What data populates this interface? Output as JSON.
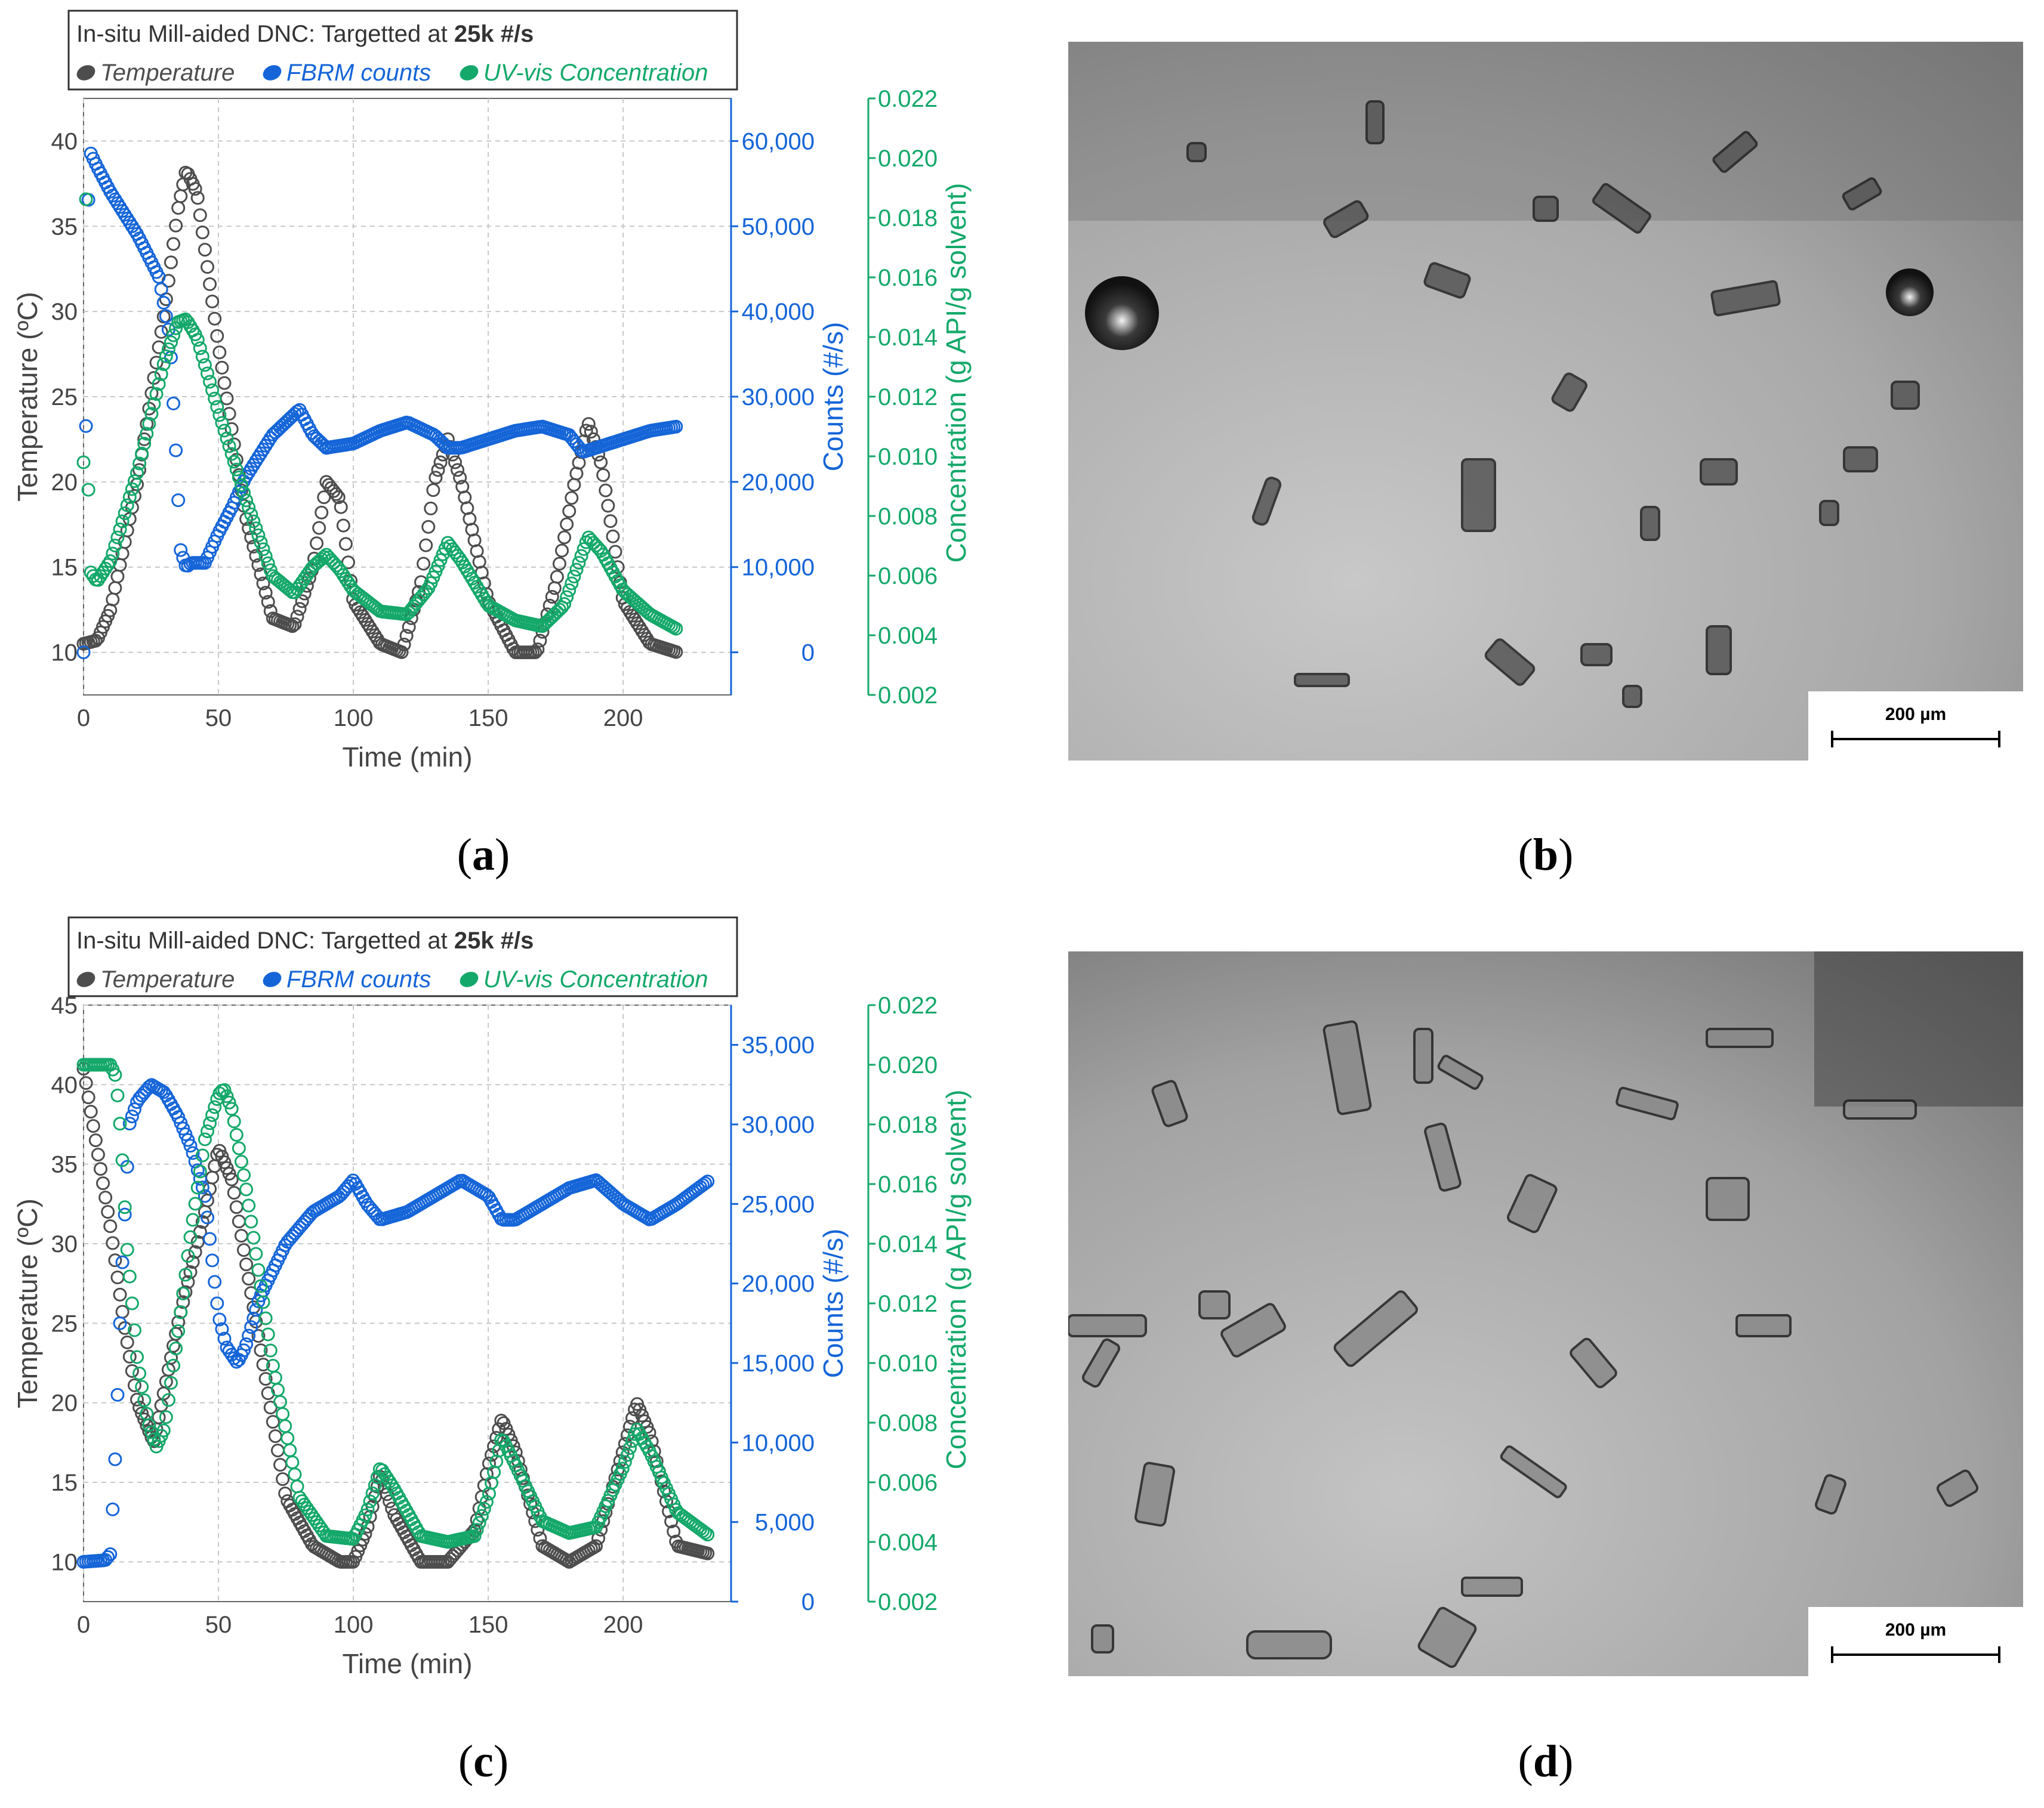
{
  "captions": {
    "a": "a",
    "b": "b",
    "c": "c",
    "d": "d"
  },
  "colors": {
    "temperature": "#4d4d4d",
    "fbrm": "#1565d8",
    "uvvis": "#14a86a"
  },
  "scalebar": {
    "label": "200 µm"
  },
  "chart_data": [
    {
      "type": "line",
      "panel": "a",
      "legend_title": {
        "prefix": "In-situ Mill-aided DNC: Targetted at ",
        "bold": "25k #/s"
      },
      "legend": [
        "Temperature",
        "FBRM counts",
        "UV-vis Concentration"
      ],
      "legend_placement": "top",
      "xlabel": "Time (min)",
      "ylabel_left": "Temperature (ºC)",
      "ylabel_right1": "Counts (#/s)",
      "ylabel_right2": "Concentration (g API/g solvent)",
      "xlim": [
        0,
        240
      ],
      "ylim_left": [
        7.5,
        42.5
      ],
      "ylim_right1": [
        -5000,
        65000
      ],
      "ylim_right2": [
        0.002,
        0.022
      ],
      "x_ticks": [
        "0",
        "50",
        "100",
        "150",
        "200"
      ],
      "y_ticks_left": [
        "10",
        "15",
        "20",
        "25",
        "30",
        "35",
        "40"
      ],
      "y_ticks_right1": [
        "0",
        "10,000",
        "20,000",
        "30,000",
        "40,000",
        "50,000",
        "60,000"
      ],
      "y_ticks_right2": [
        "0.002",
        "0.004",
        "0.006",
        "0.008",
        "0.010",
        "0.012",
        "0.014",
        "0.016",
        "0.018",
        "0.020",
        "0.022"
      ],
      "grid": true,
      "series": [
        {
          "name": "Temperature",
          "x": [
            0,
            5,
            10,
            20,
            30,
            35,
            38,
            42,
            50,
            60,
            70,
            78,
            85,
            90,
            95,
            100,
            110,
            118,
            125,
            130,
            135,
            140,
            150,
            160,
            168,
            175,
            182,
            187,
            192,
            200,
            210,
            220
          ],
          "y": [
            10.5,
            10.7,
            12.5,
            20,
            30,
            36,
            38.3,
            37,
            28,
            18,
            12,
            11.5,
            15,
            20,
            19,
            13,
            10.5,
            10,
            14,
            20,
            22.5,
            20,
            13,
            10,
            10,
            14,
            20,
            23.5,
            21,
            13,
            10.5,
            10
          ]
        },
        {
          "name": "FBRM counts",
          "x": [
            0,
            2,
            5,
            10,
            20,
            28,
            32,
            34,
            36,
            38,
            40,
            45,
            50,
            55,
            60,
            65,
            70,
            75,
            80,
            85,
            90,
            100,
            110,
            120,
            130,
            135,
            140,
            150,
            160,
            170,
            180,
            185,
            190,
            200,
            210,
            220
          ],
          "y": [
            0,
            59000,
            57000,
            54000,
            49000,
            44000,
            37000,
            25000,
            12000,
            10000,
            10500,
            10500,
            14000,
            17000,
            20500,
            23000,
            25500,
            27000,
            28500,
            25500,
            24000,
            24500,
            26000,
            27000,
            25500,
            24000,
            24000,
            25000,
            26000,
            26500,
            25500,
            23500,
            24000,
            25000,
            26000,
            26500
          ]
        },
        {
          "name": "UV-vis Concentration",
          "x": [
            0,
            1,
            2,
            5,
            10,
            20,
            30,
            35,
            38,
            42,
            50,
            60,
            70,
            78,
            85,
            90,
            95,
            100,
            110,
            120,
            128,
            135,
            140,
            150,
            160,
            170,
            178,
            187,
            192,
            200,
            210,
            220
          ],
          "y": [
            0.0098,
            0.0196,
            0.0062,
            0.0058,
            0.0065,
            0.0095,
            0.0132,
            0.0145,
            0.0146,
            0.014,
            0.0115,
            0.0086,
            0.006,
            0.0054,
            0.0063,
            0.0067,
            0.0062,
            0.0055,
            0.0048,
            0.0047,
            0.0056,
            0.0071,
            0.0065,
            0.005,
            0.0045,
            0.0043,
            0.005,
            0.0073,
            0.0068,
            0.0055,
            0.0047,
            0.0042
          ]
        }
      ]
    },
    {
      "type": "line",
      "panel": "c",
      "legend_title": {
        "prefix": "In-situ Mill-aided DNC: Targetted at ",
        "bold": "25k #/s"
      },
      "legend": [
        "Temperature",
        "FBRM counts",
        "UV-vis Concentration"
      ],
      "legend_placement": "top",
      "xlabel": "Time (min)",
      "ylabel_left": "Temperature (ºC)",
      "ylabel_right1": "Counts (#/s)",
      "ylabel_right2": "Concentration (g API/g solvent)",
      "xlim": [
        0,
        240
      ],
      "ylim_left": [
        7.5,
        45
      ],
      "ylim_right1": [
        0,
        37500
      ],
      "ylim_right2": [
        0.002,
        0.022
      ],
      "x_ticks": [
        "0",
        "50",
        "100",
        "150",
        "200"
      ],
      "y_ticks_left": [
        "10",
        "15",
        "20",
        "25",
        "30",
        "35",
        "40",
        "45"
      ],
      "y_ticks_right1": [
        "0",
        "5,000",
        "10,000",
        "15,000",
        "20,000",
        "25,000",
        "30,000",
        "35,000"
      ],
      "y_ticks_right2": [
        "0.002",
        "0.004",
        "0.006",
        "0.008",
        "0.010",
        "0.012",
        "0.014",
        "0.016",
        "0.018",
        "0.020",
        "0.022"
      ],
      "grid": true,
      "series": [
        {
          "name": "Temperature",
          "x": [
            0,
            5,
            10,
            15,
            20,
            26,
            35,
            45,
            50,
            55,
            65,
            75,
            85,
            95,
            100,
            105,
            110,
            115,
            125,
            135,
            145,
            150,
            155,
            160,
            170,
            180,
            190,
            200,
            205,
            210,
            220,
            232
          ],
          "y": [
            41,
            36,
            31,
            25,
            20,
            17.5,
            25,
            32,
            36,
            34,
            24,
            14,
            11,
            10,
            10,
            12,
            15.5,
            13,
            10,
            10,
            12,
            16,
            19,
            17,
            11,
            10,
            11,
            17,
            20,
            18,
            11,
            10.5
          ]
        },
        {
          "name": "FBRM counts",
          "x": [
            0,
            8,
            10,
            12,
            14,
            17,
            20,
            25,
            30,
            35,
            40,
            45,
            48,
            50,
            53,
            57,
            60,
            65,
            75,
            85,
            95,
            100,
            105,
            110,
            120,
            130,
            140,
            150,
            155,
            160,
            170,
            180,
            190,
            200,
            210,
            220,
            232
          ],
          "y": [
            2500,
            2600,
            3000,
            10000,
            20000,
            30000,
            31500,
            32500,
            32000,
            30500,
            28500,
            25500,
            21000,
            18000,
            16000,
            15000,
            16000,
            19000,
            22500,
            24500,
            25500,
            26500,
            25000,
            24000,
            24500,
            25500,
            26500,
            25500,
            24000,
            24000,
            25000,
            26000,
            26500,
            25000,
            24000,
            25000,
            26500
          ]
        },
        {
          "name": "UV-vis Concentration",
          "x": [
            0,
            10,
            12,
            14,
            16,
            20,
            24,
            27,
            30,
            35,
            40,
            45,
            50,
            52,
            55,
            60,
            70,
            80,
            90,
            100,
            105,
            110,
            115,
            125,
            135,
            145,
            150,
            155,
            160,
            170,
            180,
            190,
            200,
            205,
            210,
            220,
            232
          ],
          "y": [
            0.02,
            0.02,
            0.0196,
            0.0175,
            0.014,
            0.01,
            0.008,
            0.0072,
            0.0078,
            0.011,
            0.0145,
            0.0175,
            0.019,
            0.0192,
            0.0185,
            0.016,
            0.01,
            0.0055,
            0.0042,
            0.0041,
            0.005,
            0.0065,
            0.0058,
            0.0042,
            0.004,
            0.0042,
            0.0055,
            0.0075,
            0.0066,
            0.0047,
            0.0043,
            0.0045,
            0.0065,
            0.0078,
            0.007,
            0.005,
            0.0042
          ]
        }
      ]
    }
  ]
}
